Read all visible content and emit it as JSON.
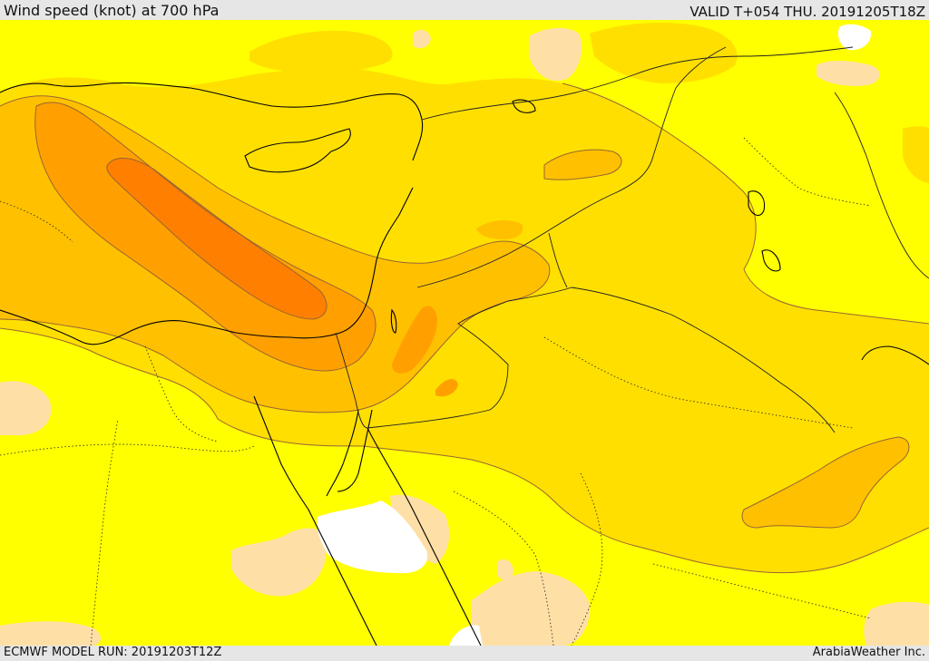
{
  "header": {
    "title": "Wind speed (knot) at 700 hPa",
    "valid_time": "VALID T+054 THU. 20191205T18Z"
  },
  "footer": {
    "model_run": "ECMWF MODEL RUN: 20191203T12Z",
    "credit": "ArabiaWeather Inc."
  },
  "map": {
    "fill_colors": {
      "lowest": "#ffffff",
      "low": "#fedfa6",
      "light": "#ffff00",
      "moderate": "#ffdf00",
      "fresh": "#ffc000",
      "strong": "#ffa000",
      "stronger": "#ff7f00"
    },
    "line_colors": {
      "coastline": "#000000",
      "border": "#222222",
      "contour": "#996633"
    }
  }
}
